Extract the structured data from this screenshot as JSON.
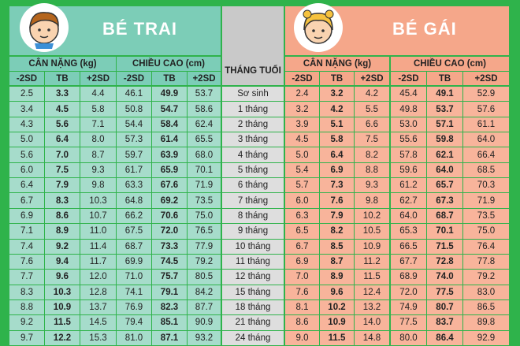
{
  "boys": {
    "title": "BÉ TRAI",
    "weight_header": "CÂN NẶNG (kg)",
    "height_header": "CHIỀU CAO (cm)"
  },
  "girls": {
    "title": "BÉ GÁI",
    "weight_header": "CÂN NẶNG (kg)",
    "height_header": "CHIỀU CAO (cm)"
  },
  "column_labels": [
    "-2SD",
    "TB",
    "+2SD"
  ],
  "month_header": "THÁNG TUỔI",
  "table": {
    "rows": [
      {
        "month": "Sơ sinh",
        "boys": [
          "2.5",
          "3.3",
          "4.4",
          "46.1",
          "49.9",
          "53.7"
        ],
        "girls": [
          "2.4",
          "3.2",
          "4.2",
          "45.4",
          "49.1",
          "52.9"
        ]
      },
      {
        "month": "1 tháng",
        "boys": [
          "3.4",
          "4.5",
          "5.8",
          "50.8",
          "54.7",
          "58.6"
        ],
        "girls": [
          "3.2",
          "4.2",
          "5.5",
          "49.8",
          "53.7",
          "57.6"
        ]
      },
      {
        "month": "2 tháng",
        "boys": [
          "4.3",
          "5.6",
          "7.1",
          "54.4",
          "58.4",
          "62.4"
        ],
        "girls": [
          "3.9",
          "5.1",
          "6.6",
          "53.0",
          "57.1",
          "61.1"
        ]
      },
      {
        "month": "3 tháng",
        "boys": [
          "5.0",
          "6.4",
          "8.0",
          "57.3",
          "61.4",
          "65.5"
        ],
        "girls": [
          "4.5",
          "5.8",
          "7.5",
          "55.6",
          "59.8",
          "64.0"
        ]
      },
      {
        "month": "4 tháng",
        "boys": [
          "5.6",
          "7.0",
          "8.7",
          "59.7",
          "63.9",
          "68.0"
        ],
        "girls": [
          "5.0",
          "6.4",
          "8.2",
          "57.8",
          "62.1",
          "66.4"
        ]
      },
      {
        "month": "5 tháng",
        "boys": [
          "6.0",
          "7.5",
          "9.3",
          "61.7",
          "65.9",
          "70.1"
        ],
        "girls": [
          "5.4",
          "6.9",
          "8.8",
          "59.6",
          "64.0",
          "68.5"
        ]
      },
      {
        "month": "6 tháng",
        "boys": [
          "6.4",
          "7.9",
          "9.8",
          "63.3",
          "67.6",
          "71.9"
        ],
        "girls": [
          "5.7",
          "7.3",
          "9.3",
          "61.2",
          "65.7",
          "70.3"
        ]
      },
      {
        "month": "7 tháng",
        "boys": [
          "6.7",
          "8.3",
          "10.3",
          "64.8",
          "69.2",
          "73.5"
        ],
        "girls": [
          "6.0",
          "7.6",
          "9.8",
          "62.7",
          "67.3",
          "71.9"
        ]
      },
      {
        "month": "8 tháng",
        "boys": [
          "6.9",
          "8.6",
          "10.7",
          "66.2",
          "70.6",
          "75.0"
        ],
        "girls": [
          "6.3",
          "7.9",
          "10.2",
          "64.0",
          "68.7",
          "73.5"
        ]
      },
      {
        "month": "9 tháng",
        "boys": [
          "7.1",
          "8.9",
          "11.0",
          "67.5",
          "72.0",
          "76.5"
        ],
        "girls": [
          "6.5",
          "8.2",
          "10.5",
          "65.3",
          "70.1",
          "75.0"
        ]
      },
      {
        "month": "10 tháng",
        "boys": [
          "7.4",
          "9.2",
          "11.4",
          "68.7",
          "73.3",
          "77.9"
        ],
        "girls": [
          "6.7",
          "8.5",
          "10.9",
          "66.5",
          "71.5",
          "76.4"
        ]
      },
      {
        "month": "11 tháng",
        "boys": [
          "7.6",
          "9.4",
          "11.7",
          "69.9",
          "74.5",
          "79.2"
        ],
        "girls": [
          "6.9",
          "8.7",
          "11.2",
          "67.7",
          "72.8",
          "77.8"
        ]
      },
      {
        "month": "12 tháng",
        "boys": [
          "7.7",
          "9.6",
          "12.0",
          "71.0",
          "75.7",
          "80.5"
        ],
        "girls": [
          "7.0",
          "8.9",
          "11.5",
          "68.9",
          "74.0",
          "79.2"
        ]
      },
      {
        "month": "15 tháng",
        "boys": [
          "8.3",
          "10.3",
          "12.8",
          "74.1",
          "79.1",
          "84.2"
        ],
        "girls": [
          "7.6",
          "9.6",
          "12.4",
          "72.0",
          "77.5",
          "83.0"
        ]
      },
      {
        "month": "18 tháng",
        "boys": [
          "8.8",
          "10.9",
          "13.7",
          "76.9",
          "82.3",
          "87.7"
        ],
        "girls": [
          "8.1",
          "10.2",
          "13.2",
          "74.9",
          "80.7",
          "86.5"
        ]
      },
      {
        "month": "21 tháng",
        "boys": [
          "9.2",
          "11.5",
          "14.5",
          "79.4",
          "85.1",
          "90.9"
        ],
        "girls": [
          "8.6",
          "10.9",
          "14.0",
          "77.5",
          "83.7",
          "89.8"
        ]
      },
      {
        "month": "24 tháng",
        "boys": [
          "9.7",
          "12.2",
          "15.3",
          "81.0",
          "87.1",
          "93.2"
        ],
        "girls": [
          "9.0",
          "11.5",
          "14.8",
          "80.0",
          "86.4",
          "92.9"
        ]
      }
    ]
  }
}
